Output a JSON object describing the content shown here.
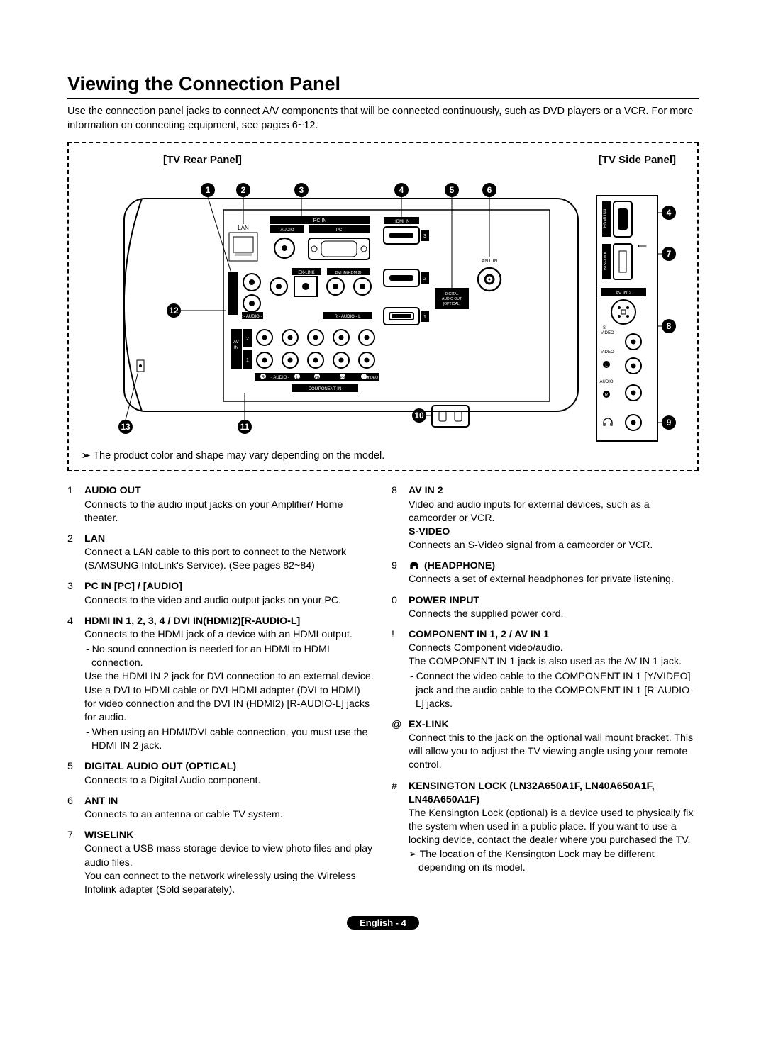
{
  "title": "Viewing the Connection Panel",
  "intro": "Use the connection panel jacks to connect A/V components that will be connected continuously, such as DVD players or a VCR. For more information on connecting equipment, see pages 6~12.",
  "rear_label": "[TV Rear Panel]",
  "side_label": "[TV Side Panel]",
  "diagram_note": "The product color and shape may vary depending on the model.",
  "diagram": {
    "callouts": [
      "1",
      "2",
      "3",
      "4",
      "5",
      "6",
      "7",
      "8",
      "9",
      "10",
      "11",
      "12",
      "13"
    ],
    "rear": {
      "lan": "LAN",
      "pc_in": "PC IN",
      "audio": "AUDIO",
      "pc": "PC",
      "hdmi_in": "HDMI IN",
      "hdmi_nums": [
        "1",
        "2",
        "3"
      ],
      "ant_in": "ANT IN",
      "ex_link": "EX-LINK",
      "dvi_in": "DVI IN(HDMI2)",
      "audio_out": "AUDIO OUT",
      "digital": "DIGITAL\nAUDIO OUT\n(OPTICAL)",
      "av_in": "AV\nIN",
      "av_nums": [
        "1",
        "2"
      ],
      "r": "R",
      "l": "L",
      "audio_lbl": "- AUDIO -",
      "pb": "PB",
      "pr": "PR",
      "yvideo": "Y/VIDEO",
      "component_in": "COMPONENT IN"
    },
    "side": {
      "hdmi_in4": "HDMI IN4",
      "wiselink": "WISELINK",
      "av_in2": "AV IN 2",
      "svideo": "S-\nVIDEO",
      "video": "VIDEO",
      "l": "L",
      "r": "R",
      "audio": "AUDIO"
    }
  },
  "left_items": [
    {
      "n": "1",
      "title": "AUDIO OUT",
      "body": "Connects to the audio input jacks on your Amplifier/ Home theater."
    },
    {
      "n": "2",
      "title": "LAN",
      "body": "Connect a LAN cable to this port to connect to the Network (SAMSUNG InfoLink's Service). (See pages 82~84)"
    },
    {
      "n": "3",
      "title": "PC IN [PC] / [AUDIO]",
      "body": "Connects to the video and audio output jacks on your PC."
    },
    {
      "n": "4",
      "title": "HDMI IN 1, 2, 3, 4 / DVI IN(HDMI2)[R-AUDIO-L]",
      "body": "Connects to the HDMI jack of a device with an HDMI output.",
      "subs": [
        "- No sound connection is needed for an HDMI to HDMI connection."
      ],
      "extra": "Use the HDMI IN 2 jack for DVI connection to an external device. Use a DVI to HDMI cable or DVI-HDMI adapter (DVI to HDMI) for video connection and the DVI IN (HDMI2) [R-AUDIO-L] jacks for audio.",
      "subs2": [
        "- When using an HDMI/DVI cable connection, you must use the HDMI IN 2 jack."
      ]
    },
    {
      "n": "5",
      "title": "DIGITAL AUDIO OUT (OPTICAL)",
      "body": "Connects to a Digital Audio component."
    },
    {
      "n": "6",
      "title": "ANT IN",
      "body": "Connects to an antenna or cable TV system."
    },
    {
      "n": "7",
      "title": "WISELINK",
      "body": "Connect a USB mass storage device to view photo files and play audio files.",
      "extra": "You can connect to the network wirelessly using the Wireless Infolink adapter (Sold separately)."
    }
  ],
  "right_items": [
    {
      "n": "8",
      "title": "AV IN 2",
      "body": "Video and audio inputs for external devices, such as a camcorder or VCR.",
      "title2": "S-VIDEO",
      "body2": "Connects an S-Video signal from a camcorder or VCR."
    },
    {
      "n": "9",
      "title": "(HEADPHONE)",
      "icon": "headphone",
      "body": "Connects a set of external headphones for private listening."
    },
    {
      "n": "0",
      "title": "POWER INPUT",
      "body": "Connects the supplied power cord."
    },
    {
      "n": "!",
      "title": "COMPONENT IN 1, 2 / AV IN 1",
      "body": "Connects Component video/audio.\nThe COMPONENT IN 1 jack is also used as the AV IN 1 jack.",
      "subs": [
        "- Connect the video cable to the COMPONENT IN 1 [Y/VIDEO] jack and the audio cable to the COMPONENT IN 1 [R-AUDIO-L] jacks."
      ]
    },
    {
      "n": "@",
      "title": "EX-LINK",
      "body": "Connect this to the jack on the optional wall mount bracket. This will allow you to adjust the TV viewing angle using your remote control."
    },
    {
      "n": "#",
      "title": "KENSINGTON LOCK (LN32A650A1F, LN40A650A1F, LN46A650A1F)",
      "body": "The Kensington Lock (optional) is a device used to physically fix the system when used in a public place. If you want to use a locking device, contact the dealer where you purchased the TV.",
      "note": "The location of the Kensington Lock may be different depending on its model."
    }
  ],
  "footer": "English - 4"
}
